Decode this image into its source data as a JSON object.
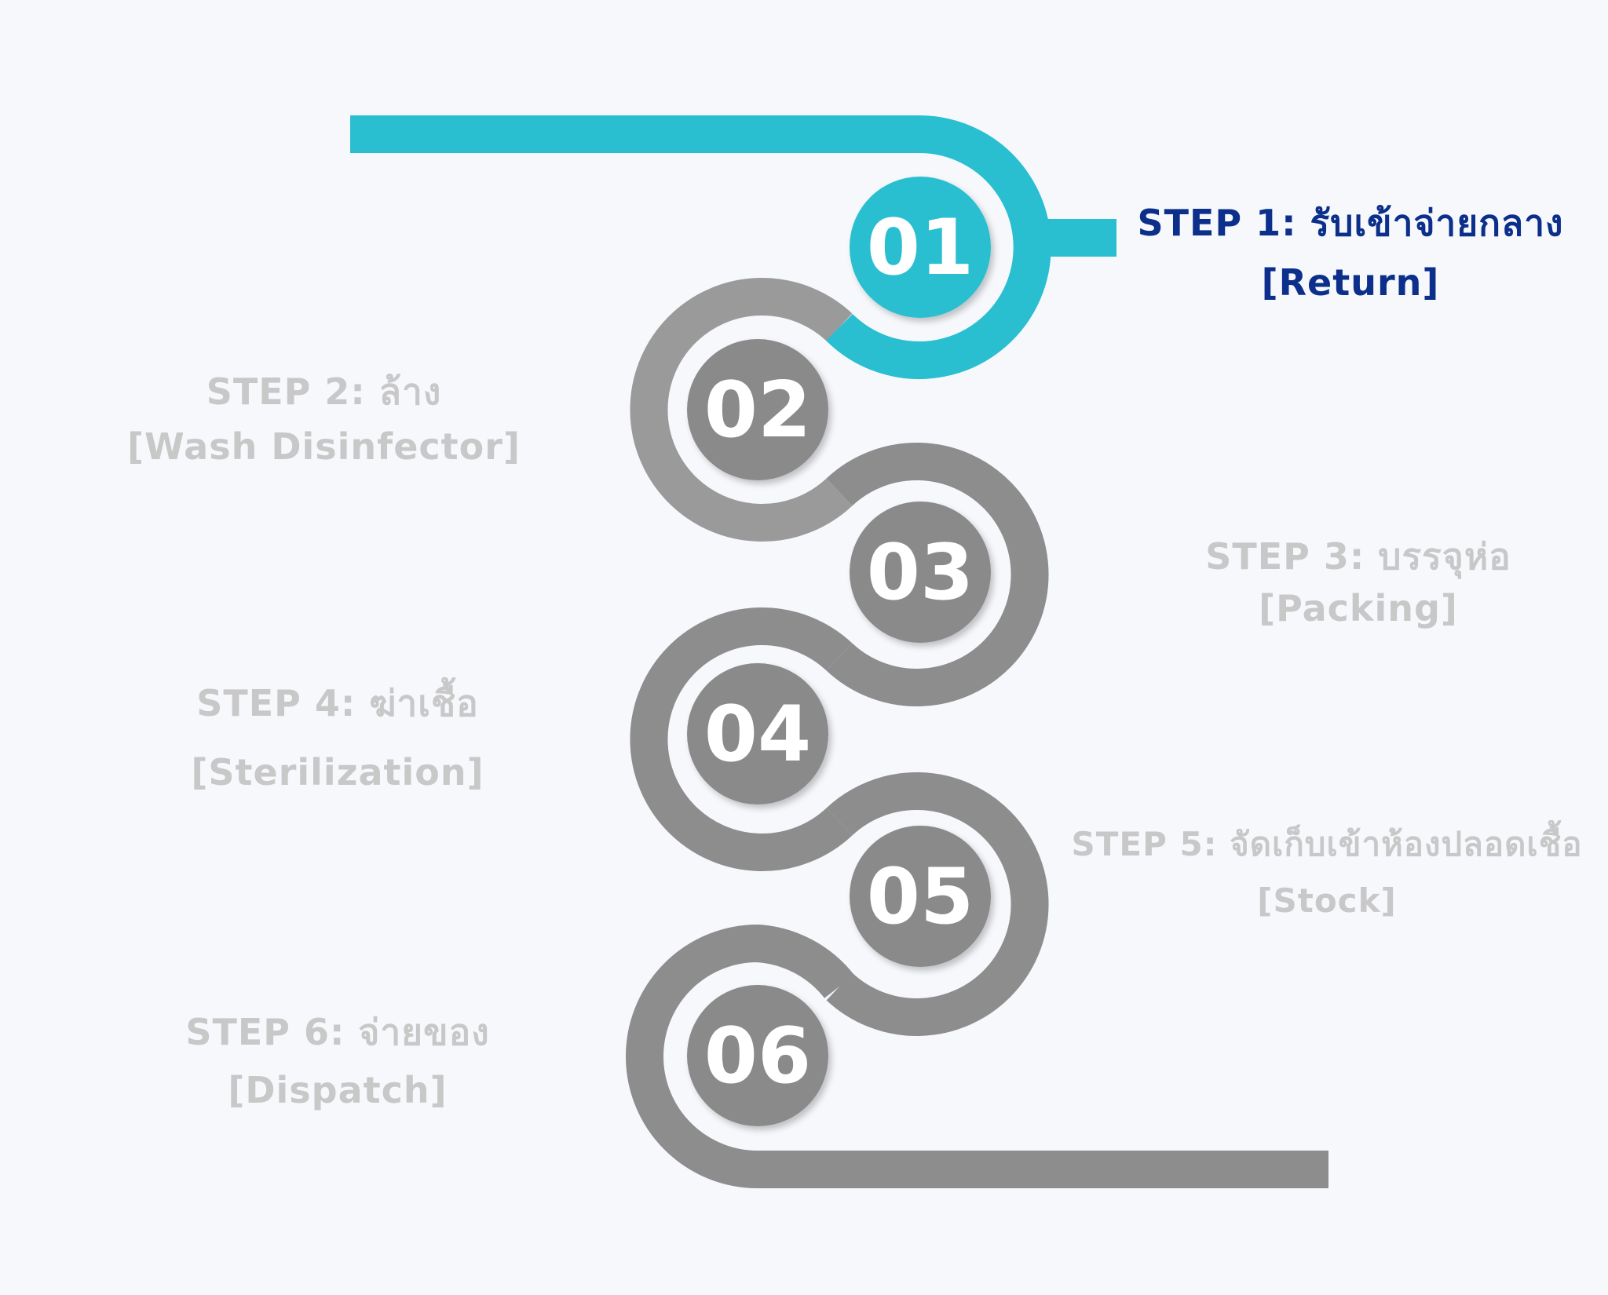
{
  "colors": {
    "background": "#f6f8fc",
    "active_track": "#29bfd0",
    "inactive_track": "#8d8d8d",
    "inactive_track_light": "#9a9a9a",
    "inactive_circle": "#8a8a8a",
    "number_text": "#ffffff",
    "active_label": "#0b2f8a",
    "inactive_label": "#c8c8c8"
  },
  "steps": [
    {
      "number": "01",
      "title": "STEP 1: รับเข้าจ่ายกลาง",
      "subtitle": "[Return]",
      "active": true
    },
    {
      "number": "02",
      "title": "STEP 2: ล้าง",
      "subtitle": "[Wash Disinfector]",
      "active": false
    },
    {
      "number": "03",
      "title": "STEP 3: บรรจุห่อ",
      "subtitle": "[Packing]",
      "active": false
    },
    {
      "number": "04",
      "title": "STEP 4: ฆ่าเชื้อ",
      "subtitle": "[Sterilization]",
      "active": false
    },
    {
      "number": "05",
      "title": "STEP 5: จัดเก็บเข้าห้องปลอดเชื้อ",
      "subtitle": "[Stock]",
      "active": false
    },
    {
      "number": "06",
      "title": "STEP 6: จ่ายของ",
      "subtitle": "[Dispatch]",
      "active": false
    }
  ]
}
